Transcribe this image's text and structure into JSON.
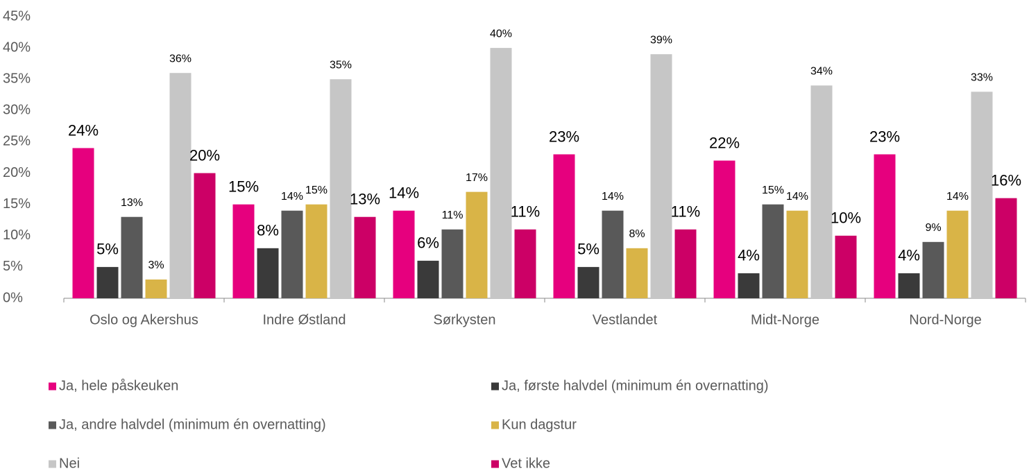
{
  "chart_data": {
    "type": "bar",
    "categories": [
      "Oslo og Akershus",
      "Indre Østland",
      "Sørkysten",
      "Vestlandet",
      "Midt-Norge",
      "Nord-Norge"
    ],
    "series": [
      {
        "name": "Ja, hele påskeuken",
        "color": "#e6007e",
        "values": [
          24,
          15,
          14,
          23,
          22,
          23
        ],
        "value_labels": [
          "24%",
          "15%",
          "14%",
          "23%",
          "22%",
          "23%"
        ]
      },
      {
        "name": "Ja, første halvdel (minimum én overnatting)",
        "color": "#3a3a3a",
        "values": [
          5,
          8,
          6,
          5,
          4,
          4
        ],
        "value_labels": [
          "5%",
          "8%",
          "6%",
          "5%",
          "4%",
          "4%"
        ]
      },
      {
        "name": "Ja, andre halvdel (minimum én overnatting)",
        "color": "#595959",
        "values": [
          13,
          14,
          11,
          14,
          15,
          9
        ],
        "value_labels": [
          "13%",
          "14%",
          "11%",
          "14%",
          "15%",
          "9%"
        ]
      },
      {
        "name": "Kun dagstur",
        "color": "#d9b447",
        "values": [
          3,
          15,
          17,
          8,
          14,
          14
        ],
        "value_labels": [
          "3%",
          "15%",
          "17%",
          "8%",
          "14%",
          "14%"
        ]
      },
      {
        "name": "Nei",
        "color": "#c6c6c6",
        "values": [
          36,
          35,
          40,
          39,
          34,
          33
        ],
        "value_labels": [
          "36%",
          "35%",
          "40%",
          "39%",
          "34%",
          "33%"
        ]
      },
      {
        "name": "Vet ikke",
        "color": "#cc0066",
        "values": [
          20,
          13,
          11,
          11,
          10,
          16
        ],
        "value_labels": [
          "20%",
          "13%",
          "11%",
          "11%",
          "10%",
          "16%"
        ]
      }
    ],
    "ylim": [
      0,
      45
    ],
    "yticks": [
      {
        "value": 0,
        "label": "0%"
      },
      {
        "value": 5,
        "label": "5%"
      },
      {
        "value": 10,
        "label": "10%"
      },
      {
        "value": 15,
        "label": "15%"
      },
      {
        "value": 20,
        "label": "20%"
      },
      {
        "value": 25,
        "label": "25%"
      },
      {
        "value": 30,
        "label": "30%"
      },
      {
        "value": 35,
        "label": "35%"
      },
      {
        "value": 40,
        "label": "40%"
      },
      {
        "value": 45,
        "label": "45%"
      }
    ],
    "legend": "bottom"
  }
}
